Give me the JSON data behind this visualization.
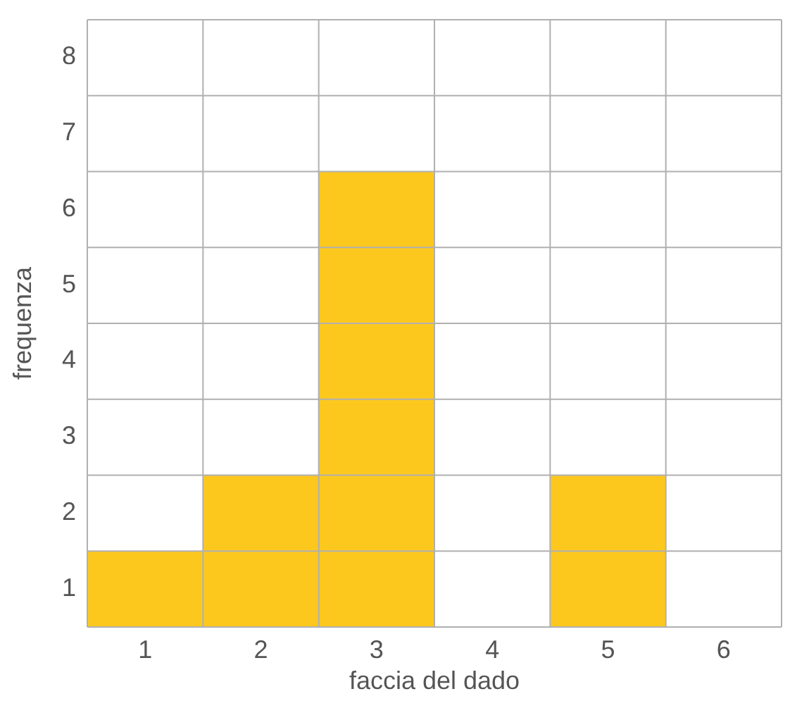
{
  "chart_data": {
    "type": "bar",
    "xlabel": "faccia del dado",
    "ylabel": "frequenza",
    "categories": [
      "1",
      "2",
      "3",
      "4",
      "5",
      "6"
    ],
    "values": [
      1,
      2,
      6,
      0,
      2,
      0
    ],
    "color": "#fdc81e",
    "ylim": [
      0,
      8
    ],
    "yticks": [
      {
        "value": 0.5,
        "label": "1"
      },
      {
        "value": 1.5,
        "label": "2"
      },
      {
        "value": 2.5,
        "label": "3"
      },
      {
        "value": 3.5,
        "label": "4"
      },
      {
        "value": 4.5,
        "label": "5"
      },
      {
        "value": 5.5,
        "label": "6"
      },
      {
        "value": 6.5,
        "label": "7"
      },
      {
        "value": 7.5,
        "label": "8"
      }
    ],
    "grid": true
  }
}
